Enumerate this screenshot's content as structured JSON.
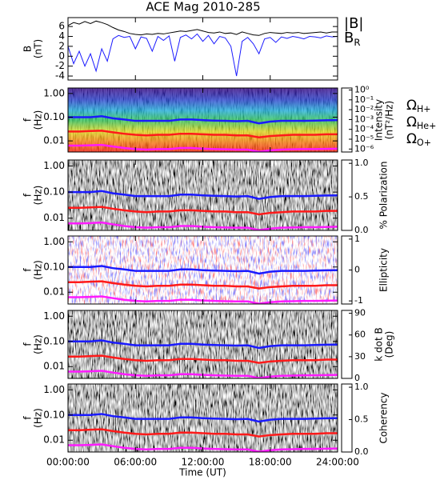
{
  "chart_data": [
    {
      "type": "line",
      "title": "ACE Mag 2010-285",
      "ylabel": [
        "B",
        "(nT)"
      ],
      "x": [
        0,
        0.5,
        1,
        1.5,
        2,
        2.5,
        3,
        3.5,
        4,
        4.5,
        5,
        5.5,
        6,
        6.5,
        7,
        7.5,
        8,
        8.5,
        9,
        9.5,
        10,
        10.5,
        11,
        11.5,
        12,
        12.5,
        13,
        13.5,
        14,
        14.5,
        15,
        15.5,
        16,
        16.5,
        17,
        17.5,
        18,
        18.5,
        19,
        19.5,
        20,
        20.5,
        21,
        21.5,
        22,
        22.5,
        23,
        23.5,
        24
      ],
      "ylim": [
        -4.8,
        7.8
      ],
      "yticks": [
        -4,
        -2,
        0,
        2,
        4,
        6
      ],
      "series": [
        {
          "name": "|B|",
          "color": "#000000",
          "values": [
            6.2,
            6.8,
            6.5,
            7.0,
            6.6,
            7.1,
            6.8,
            6.4,
            5.8,
            5.3,
            5.0,
            4.6,
            4.4,
            4.3,
            4.5,
            4.4,
            4.6,
            4.5,
            4.7,
            4.9,
            5.1,
            5.0,
            5.2,
            5.4,
            5.1,
            4.8,
            4.7,
            4.9,
            4.6,
            4.7,
            4.4,
            4.9,
            4.6,
            4.3,
            4.2,
            4.6,
            4.8,
            4.7,
            4.6,
            4.8,
            4.7,
            4.8,
            4.6,
            4.7,
            4.8,
            4.9,
            4.7,
            4.9,
            4.9
          ]
        },
        {
          "name": "BR",
          "color": "#1a1aff",
          "values": [
            2.0,
            -1.5,
            1.0,
            -2.0,
            0.5,
            -3.0,
            1.5,
            -1.0,
            3.5,
            4.2,
            3.8,
            4.0,
            1.5,
            3.9,
            3.6,
            1.0,
            4.0,
            3.2,
            4.1,
            -1.0,
            3.8,
            4.3,
            3.5,
            4.5,
            3.0,
            4.2,
            2.5,
            4.0,
            3.7,
            2.0,
            -4.0,
            3.0,
            3.8,
            2.5,
            0.5,
            3.5,
            3.8,
            2.8,
            3.9,
            3.6,
            4.0,
            3.8,
            3.5,
            4.0,
            3.9,
            3.7,
            4.1,
            3.9,
            4.0
          ]
        }
      ]
    },
    {
      "type": "spectrogram",
      "ylabel": [
        "f",
        "(Hz)"
      ],
      "yscale": "log",
      "ylim": [
        0.0034,
        1.7
      ],
      "yticks": [
        {
          "value": 1,
          "label": "1.00"
        },
        {
          "value": 0.1,
          "label": "0.10"
        },
        0.01
      ],
      "colormap": "rainbow",
      "colorbar": {
        "label": [
          "Intensity",
          "(nT²/Hz)"
        ],
        "scale": "log",
        "lim": [
          5e-07,
          1.6
        ],
        "ticks": [
          {
            "value": 1,
            "label": "10⁰"
          },
          {
            "value": 0.1,
            "label": "10⁻¹"
          },
          {
            "value": 0.01,
            "label": "10⁻²"
          },
          {
            "value": 0.001,
            "label": "10⁻³"
          },
          {
            "value": 0.0001,
            "label": "10⁻⁴"
          },
          {
            "value": 1e-05,
            "label": "10⁻⁵"
          },
          {
            "value": 1e-06,
            "label": "10⁻⁶"
          }
        ]
      },
      "x": [
        0,
        1,
        2,
        3,
        4,
        5,
        6,
        7,
        8,
        9,
        10,
        11,
        12,
        13,
        14,
        15,
        16,
        17,
        18,
        19,
        20,
        21,
        22,
        23,
        24
      ],
      "series": [
        {
          "name": "ΩH+",
          "color": "#1a1aff",
          "values": [
            0.1,
            0.1,
            0.1,
            0.11,
            0.09,
            0.08,
            0.07,
            0.07,
            0.07,
            0.07,
            0.08,
            0.08,
            0.075,
            0.072,
            0.07,
            0.068,
            0.07,
            0.055,
            0.065,
            0.07,
            0.07,
            0.07,
            0.072,
            0.074,
            0.075
          ]
        },
        {
          "name": "ΩHe+",
          "color": "#ff1a1a",
          "values": [
            0.025,
            0.025,
            0.026,
            0.027,
            0.023,
            0.02,
            0.018,
            0.017,
            0.018,
            0.018,
            0.02,
            0.02,
            0.019,
            0.018,
            0.018,
            0.017,
            0.017,
            0.014,
            0.016,
            0.017,
            0.018,
            0.018,
            0.018,
            0.019,
            0.019
          ]
        },
        {
          "name": "ΩO+",
          "color": "#ff1aff",
          "values": [
            0.0063,
            0.0063,
            0.0065,
            0.0068,
            0.0058,
            0.005,
            0.0045,
            0.0043,
            0.0045,
            0.0045,
            0.005,
            0.005,
            0.0047,
            0.0045,
            0.0044,
            0.0043,
            0.0043,
            0.0035,
            0.004,
            0.0043,
            0.0044,
            0.0045,
            0.0045,
            0.0046,
            0.0047
          ]
        }
      ]
    },
    {
      "type": "spectrogram",
      "ylabel": [
        "f",
        "(Hz)"
      ],
      "yscale": "log",
      "ylim": [
        0.0034,
        1.7
      ],
      "yticks": [
        {
          "value": 1,
          "label": "1.00"
        },
        {
          "value": 0.1,
          "label": "0.10"
        },
        0.01
      ],
      "colormap": "gray",
      "colorbar": {
        "label": [
          "% Polarization"
        ],
        "scale": "linear",
        "lim": [
          0,
          1.05
        ],
        "ticks": [
          {
            "value": 0,
            "label": "0.0"
          },
          {
            "value": 0.5,
            "label": "0.5"
          },
          {
            "value": 1,
            "label": "1.0"
          }
        ]
      }
    },
    {
      "type": "spectrogram",
      "ylabel": [
        "f",
        "(Hz)"
      ],
      "yscale": "log",
      "ylim": [
        0.0034,
        1.7
      ],
      "yticks": [
        {
          "value": 1,
          "label": "1.00"
        },
        {
          "value": 0.1,
          "label": "0.10"
        },
        0.01
      ],
      "colormap": "bwr",
      "colorbar": {
        "label": [
          "Ellipticity"
        ],
        "scale": "linear",
        "lim": [
          -1.1,
          1.1
        ],
        "ticks": [
          -1,
          0,
          1
        ]
      }
    },
    {
      "type": "spectrogram",
      "ylabel": [
        "f",
        "(Hz)"
      ],
      "yscale": "log",
      "ylim": [
        0.0034,
        1.7
      ],
      "yticks": [
        {
          "value": 1,
          "label": "1.00"
        },
        {
          "value": 0.1,
          "label": "0.10"
        },
        0.01
      ],
      "colormap": "gray",
      "colorbar": {
        "label": [
          "k dot B",
          "(Deg)"
        ],
        "scale": "linear",
        "lim": [
          0,
          94
        ],
        "ticks": [
          0,
          30,
          60,
          90
        ]
      }
    },
    {
      "type": "spectrogram",
      "ylabel": [
        "f",
        "(Hz)"
      ],
      "yscale": "log",
      "ylim": [
        0.0034,
        1.7
      ],
      "yticks": [
        {
          "value": 1,
          "label": "1.00"
        },
        {
          "value": 0.1,
          "label": "0.10"
        },
        0.01
      ],
      "colormap": "gray",
      "colorbar": {
        "label": [
          "Coherency"
        ],
        "scale": "linear",
        "lim": [
          0,
          1.05
        ],
        "ticks": [
          {
            "value": 0,
            "label": "0.0"
          },
          {
            "value": 0.5,
            "label": "0.5"
          },
          {
            "value": 1,
            "label": "1.0"
          }
        ]
      },
      "xlim": [
        0,
        24
      ],
      "xticks": [
        {
          "value": 0,
          "label": "00:00:00"
        },
        {
          "value": 6,
          "label": "06:00:00"
        },
        {
          "value": 12,
          "label": "12:00:00"
        },
        {
          "value": 18,
          "label": "18:00:00"
        },
        {
          "value": 24,
          "label": "24:00:00"
        }
      ],
      "xlabel": "Time (UT)"
    }
  ]
}
